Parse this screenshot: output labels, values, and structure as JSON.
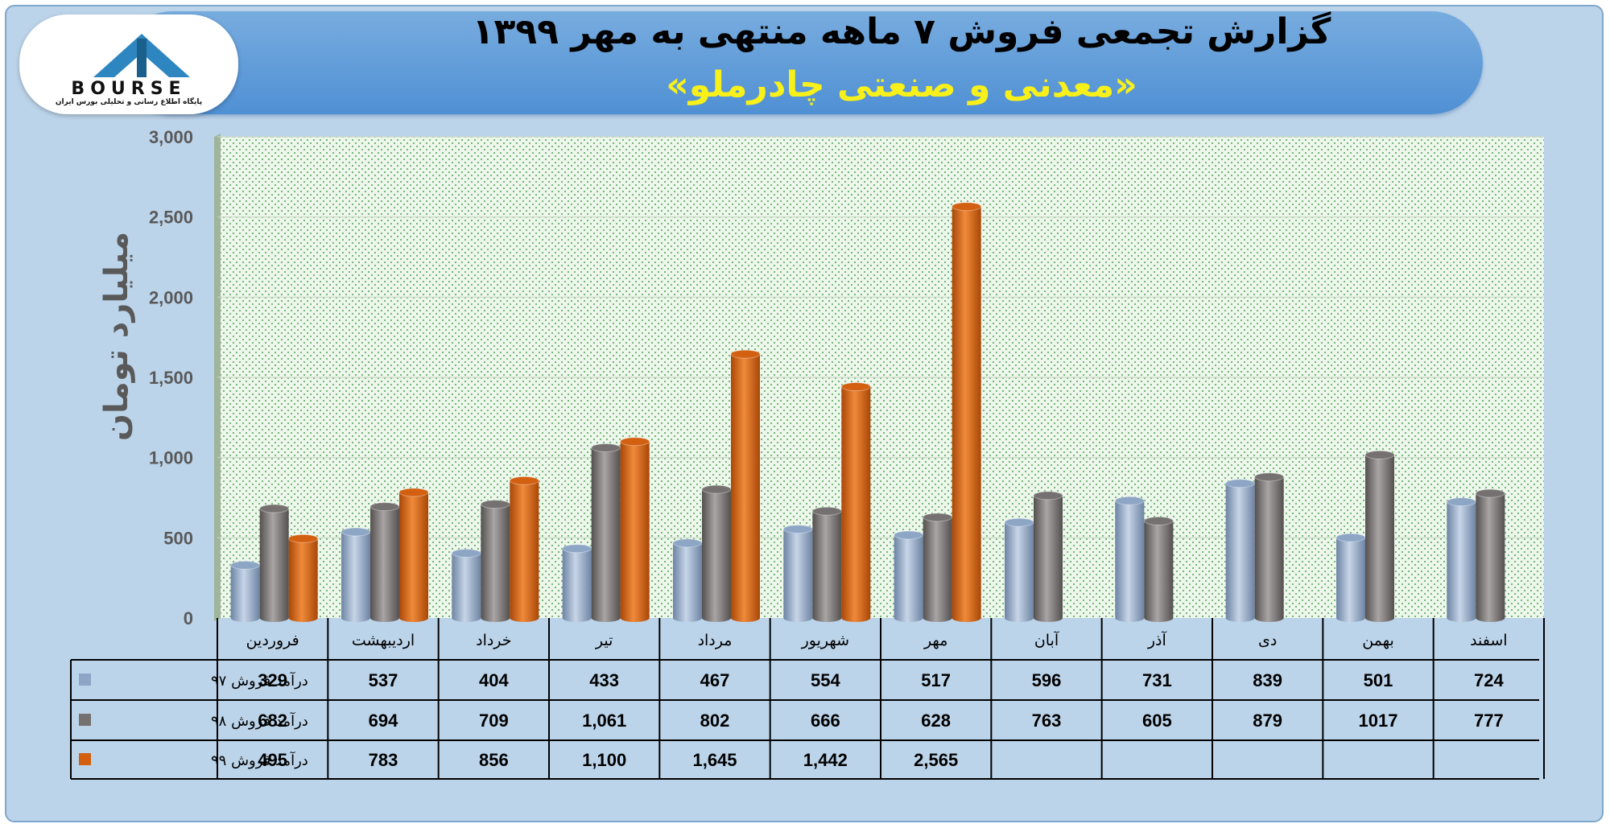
{
  "header": {
    "title": "گزارش تجمعی فروش ۷ ماهه منتهی به مهر ۱۳۹۹",
    "subtitle": "«معدنی و صنعتی چادرملو»"
  },
  "logo": {
    "word": "BOURSE",
    "caption": "پایگاه اطلاع رسانی و تحلیلی بورس ایران"
  },
  "colors": {
    "series_97": "#8ea6c6",
    "series_98": "#757171",
    "series_99": "#d35f10"
  },
  "chart_data": {
    "type": "bar",
    "ylabel": "میلیارد تومان",
    "ylim": [
      0,
      3000
    ],
    "yticks": [
      "0",
      "500",
      "1,000",
      "1,500",
      "2,000",
      "2,500",
      "3,000"
    ],
    "grid": true,
    "legend": "data-table-left",
    "categories": [
      "فروردین",
      "اردیبهشت",
      "خرداد",
      "تیر",
      "مرداد",
      "شهریور",
      "مهر",
      "آبان",
      "آذر",
      "دی",
      "بهمن",
      "اسفند"
    ],
    "series": [
      {
        "name": "درآمد فروش ۹۷",
        "values": [
          329,
          537,
          404,
          433,
          467,
          554,
          517,
          596,
          731,
          839,
          501,
          724
        ],
        "labels": [
          "329",
          "537",
          "404",
          "433",
          "467",
          "554",
          "517",
          "596",
          "731",
          "839",
          "501",
          "724"
        ]
      },
      {
        "name": "درآمد فروش ۹۸",
        "values": [
          682,
          694,
          709,
          1061,
          802,
          666,
          628,
          763,
          605,
          879,
          1017,
          777
        ],
        "labels": [
          "682",
          "694",
          "709",
          "1,061",
          "802",
          "666",
          "628",
          "763",
          "605",
          "879",
          "1017",
          "777"
        ]
      },
      {
        "name": "درآمد فروش ۹۹",
        "values": [
          495,
          783,
          856,
          1100,
          1645,
          1442,
          2565,
          null,
          null,
          null,
          null,
          null
        ],
        "labels": [
          "495",
          "783",
          "856",
          "1,100",
          "1,645",
          "1,442",
          "2,565",
          "",
          "",
          "",
          "",
          ""
        ]
      }
    ]
  }
}
